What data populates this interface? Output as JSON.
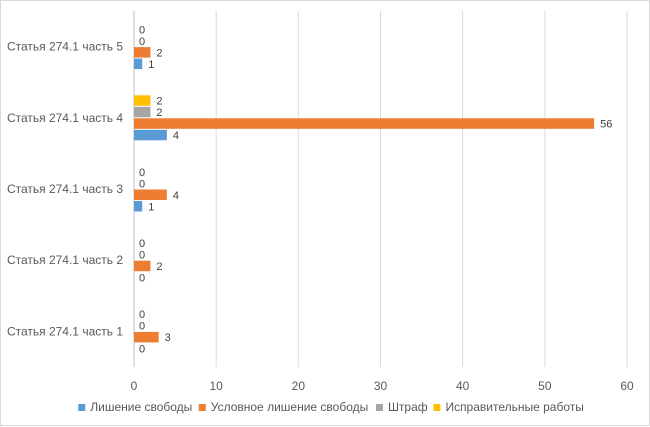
{
  "chart_data": {
    "type": "bar",
    "orientation": "horizontal",
    "categories": [
      "Статья 274.1 часть 5",
      "Статья 274.1 часть 4",
      "Статья 274.1 часть 3",
      "Статья 274.1 часть 2",
      "Статья 274.1 часть 1"
    ],
    "series": [
      {
        "name": "Лишение свободы",
        "color": "#5b9bd5",
        "values": [
          1,
          4,
          1,
          0,
          0
        ]
      },
      {
        "name": "Условное лишение свободы",
        "color": "#ed7d31",
        "values": [
          2,
          56,
          4,
          2,
          3
        ]
      },
      {
        "name": "Штраф",
        "color": "#a5a5a5",
        "values": [
          0,
          2,
          0,
          0,
          0
        ]
      },
      {
        "name": "Исправительные работы",
        "color": "#ffc000",
        "values": [
          0,
          2,
          0,
          0,
          0
        ]
      }
    ],
    "xlim": [
      0,
      60
    ],
    "xticks": [
      0,
      10,
      20,
      30,
      40,
      50,
      60
    ],
    "xtick_labels": [
      "0",
      "10",
      "20",
      "30",
      "40",
      "50",
      "60"
    ],
    "grid": true,
    "legend_position": "bottom",
    "data_labels": true
  }
}
